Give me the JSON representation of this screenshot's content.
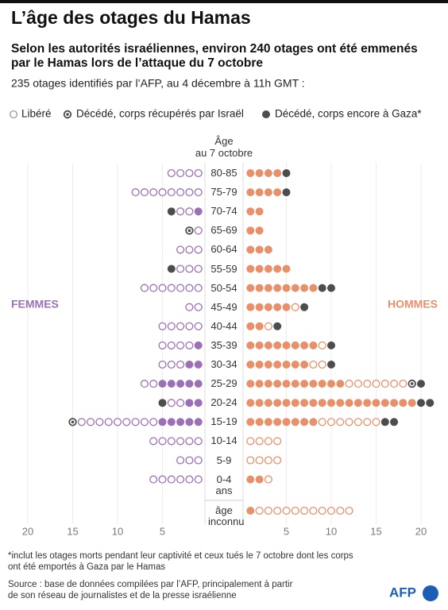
{
  "chart_data": {
    "type": "dot",
    "title": "L’âge des otages du Hamas",
    "subtitle": [
      "Selon les autorités israéliennes, environ 240 otages ont été emmenés",
      "par le Hamas lors de l’attaque du 7 octobre"
    ],
    "note": "235 otages identifiés par l’AFP, au 4 décembre à 11h GMT :",
    "legend": [
      "Libéré",
      "Décédé, corps récupérés par Israël",
      "Décédé, corps encore à Gaza*"
    ],
    "dead_color": "#4d4d4d",
    "age_header": [
      "Âge",
      "au 7 octobre"
    ],
    "categories": [
      "80-85",
      "75-79",
      "70-74",
      "65-69",
      "60-64",
      "55-59",
      "50-54",
      "45-49",
      "40-44",
      "35-39",
      "30-34",
      "25-29",
      "20-24",
      "15-19",
      "10-14",
      "5-9",
      "0-4 ans",
      "âge inconnu"
    ],
    "sides": [
      {
        "name": "FEMMES",
        "color": "#9b70b5",
        "counts": [
          [
            0,
            4,
            0,
            0
          ],
          [
            0,
            8,
            0,
            0
          ],
          [
            1,
            2,
            0,
            1
          ],
          [
            0,
            1,
            1,
            0
          ],
          [
            0,
            3,
            0,
            0
          ],
          [
            0,
            3,
            0,
            1
          ],
          [
            0,
            7,
            0,
            0
          ],
          [
            0,
            2,
            0,
            0
          ],
          [
            0,
            5,
            0,
            0
          ],
          [
            1,
            4,
            0,
            0
          ],
          [
            2,
            3,
            0,
            0
          ],
          [
            5,
            2,
            0,
            0
          ],
          [
            2,
            2,
            0,
            1
          ],
          [
            5,
            9,
            1,
            0
          ],
          [
            0,
            6,
            0,
            0
          ],
          [
            0,
            3,
            0,
            0
          ],
          [
            0,
            6,
            0,
            0
          ],
          [
            0,
            0,
            0,
            0
          ]
        ]
      },
      {
        "name": "HOMMES",
        "color": "#e8906a",
        "counts": [
          [
            4,
            0,
            0,
            1
          ],
          [
            4,
            0,
            0,
            1
          ],
          [
            2,
            0,
            0,
            0
          ],
          [
            2,
            0,
            0,
            0
          ],
          [
            3,
            0,
            0,
            0
          ],
          [
            5,
            0,
            0,
            0
          ],
          [
            8,
            0,
            0,
            2
          ],
          [
            5,
            1,
            0,
            1
          ],
          [
            2,
            1,
            0,
            1
          ],
          [
            8,
            1,
            0,
            1
          ],
          [
            7,
            2,
            0,
            1
          ],
          [
            11,
            7,
            1,
            1
          ],
          [
            19,
            0,
            0,
            2
          ],
          [
            8,
            7,
            0,
            2
          ],
          [
            0,
            4,
            0,
            0
          ],
          [
            0,
            4,
            0,
            0
          ],
          [
            2,
            1,
            0,
            0
          ],
          [
            1,
            11,
            0,
            0
          ]
        ]
      }
    ],
    "xlim": [
      0,
      21
    ],
    "xticks": [
      5,
      10,
      15,
      20
    ],
    "footnote": [
      "*inclut les otages morts pendant leur captivité et ceux tués le 7 octobre dont les corps",
      "ont été emportés à Gaza par le Hamas"
    ],
    "source": [
      "Source : base de données compilées par l’AFP, principalement à partir",
      "de son réseau de journalistes et de la presse israélienne"
    ],
    "logo": "AFP"
  }
}
